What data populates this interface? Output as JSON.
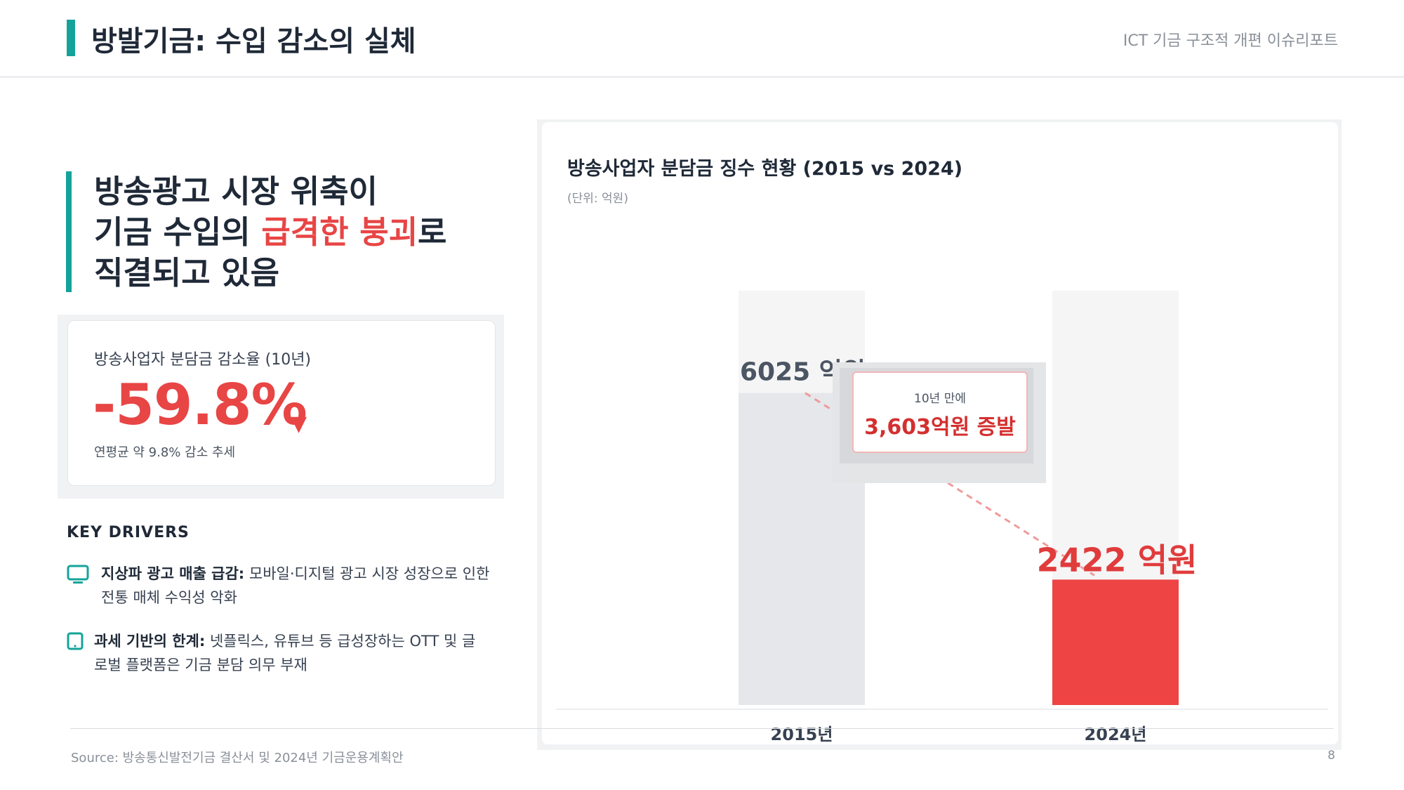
{
  "header": {
    "title": "방발기금: 수입 감소의 실체",
    "report_name": "ICT 기금 구조적 개편 이슈리포트"
  },
  "headline": {
    "line1": "방송광고 시장 위축이",
    "line2_pre": "기금 수입의 ",
    "line2_highlight": "급격한 붕괴",
    "line2_post": "로",
    "line3": "직결되고 있음"
  },
  "kpi": {
    "label": "방송사업자 분담금 감소율 (10년)",
    "value": "-59.8%",
    "arrow": "▼",
    "note": "연평균 약 9.8% 감소 추세"
  },
  "drivers": {
    "title": "KEY DRIVERS",
    "items": [
      {
        "icon": "tv-icon",
        "bold": "지상파 광고 매출 급감:",
        "text": " 모바일·디지털 광고 시장 성장으로 인한 전통 매체 수익성 악화"
      },
      {
        "icon": "tablet-icon",
        "bold": "과세 기반의 한계:",
        "text": " 넷플릭스, 유튜브 등 급성장하는 OTT 및 글로벌 플랫폼은 기금 분담 의무 부재"
      }
    ]
  },
  "chart_data": {
    "type": "bar",
    "title": "방송사업자 분담금 징수 현황 (2015 vs 2024)",
    "unit": "(단위: 억원)",
    "categories": [
      "2015년",
      "2024년"
    ],
    "values": [
      6025,
      2422
    ],
    "value_labels": [
      "6025 억원",
      "2422 억원"
    ],
    "ylim": [
      0,
      8000
    ],
    "colors": [
      "#e5e7eb",
      "#ef4444"
    ],
    "track_color": "#f5f5f6",
    "annotation": {
      "small": "10년 만에",
      "big": "3,603억원 증발"
    }
  },
  "footer": {
    "source": "Source: 방송통신발전기금 결산서 및 2024년 기금운용계획안",
    "page": "8"
  }
}
